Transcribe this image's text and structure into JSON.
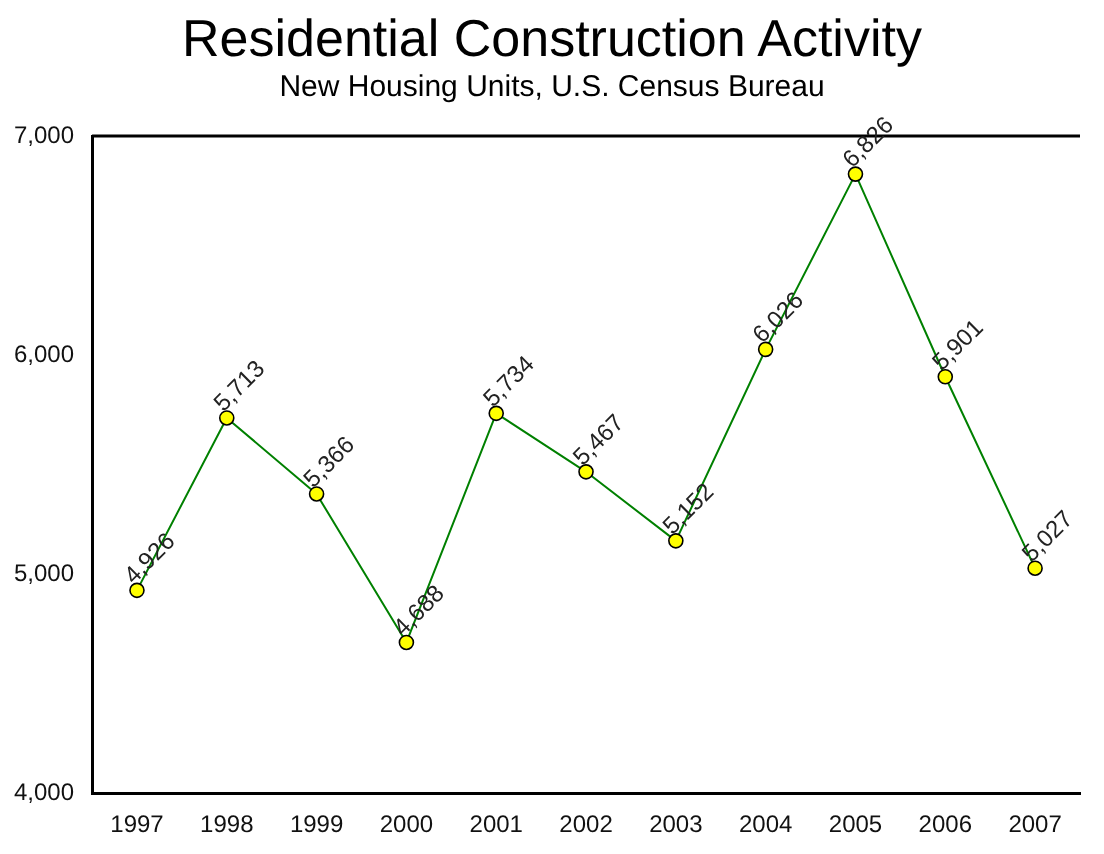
{
  "chart_data": {
    "type": "line",
    "title": "Residential Construction Activity",
    "subtitle": "New Housing Units, U.S. Census Bureau",
    "categories": [
      "1997",
      "1998",
      "1999",
      "2000",
      "2001",
      "2002",
      "2003",
      "2004",
      "2005",
      "2006",
      "2007"
    ],
    "series": [
      {
        "color": "#008000",
        "values": [
          4926,
          5713,
          5366,
          4688,
          5734,
          5467,
          5152,
          6026,
          6826,
          5901,
          5027
        ],
        "value_labels": [
          "4,926",
          "5,713",
          "5,366",
          "4,688",
          "5,734",
          "5,467",
          "5,152",
          "6,026",
          "6,826",
          "5,901",
          "5,027"
        ]
      }
    ],
    "ylim": [
      4000,
      7000
    ],
    "yticks": [
      {
        "value": 4000,
        "label": "4,000"
      },
      {
        "value": 5000,
        "label": "5,000"
      },
      {
        "value": 6000,
        "label": "6,000"
      },
      {
        "value": 7000,
        "label": "7,000"
      }
    ],
    "grid": false,
    "legend": false,
    "marker": "circle",
    "line_style": "solid"
  }
}
